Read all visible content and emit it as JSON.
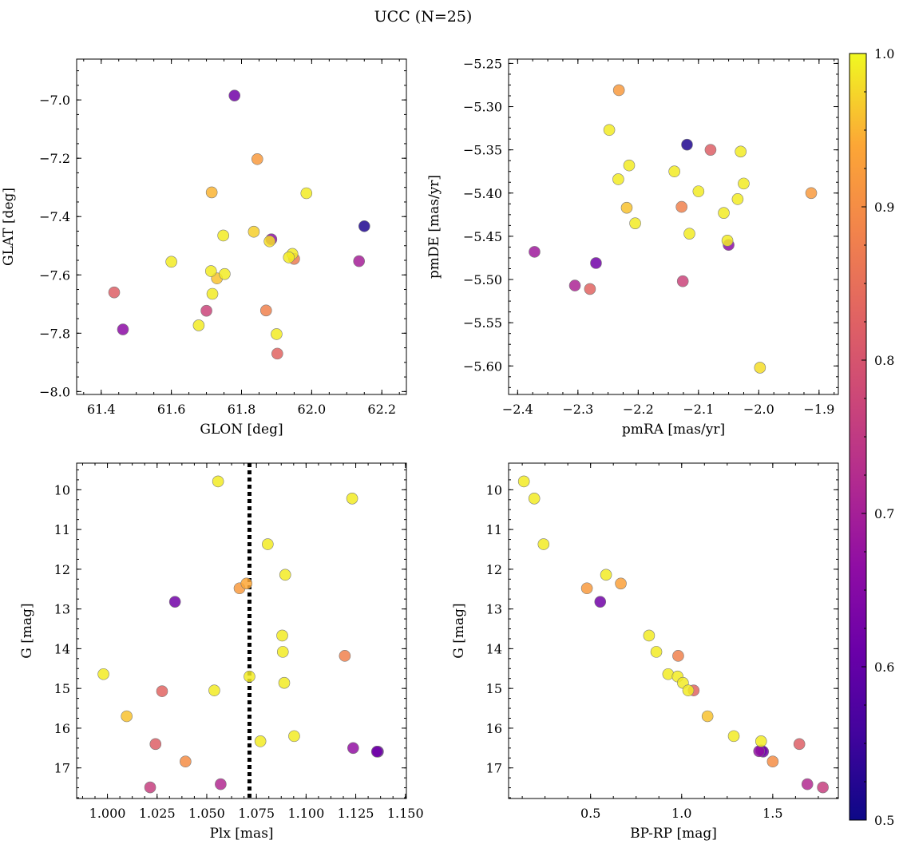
{
  "figure": {
    "title": "UCC (N=25)",
    "colormap": "plasma",
    "colorbar": {
      "min": 0.5,
      "max": 1.0,
      "ticks": [
        0.5,
        0.6,
        0.7,
        0.8,
        0.9,
        1.0
      ],
      "tick_labels": [
        "0.5",
        "0.6",
        "0.7",
        "0.8",
        "0.9",
        "1.0"
      ]
    }
  },
  "chart_data": [
    {
      "type": "scatter",
      "panel": "top-left",
      "xlabel": "GLON [deg]",
      "ylabel": "GLAT [deg]",
      "xlim": [
        61.33,
        62.27
      ],
      "ylim": [
        -8.01,
        -6.86
      ],
      "xticks": [
        61.4,
        61.6,
        61.8,
        62.0,
        62.2
      ],
      "xtick_labels": [
        "61.4",
        "61.6",
        "61.8",
        "62.0",
        "62.2"
      ],
      "yticks": [
        -8.0,
        -7.8,
        -7.6,
        -7.4,
        -7.2,
        -7.0
      ],
      "ytick_labels": [
        "−8.0",
        "−7.8",
        "−7.6",
        "−7.4",
        "−7.2",
        "−7.0"
      ],
      "grid": false,
      "points": [
        {
          "x": 61.78,
          "y": -6.985,
          "c": 0.62
        },
        {
          "x": 61.845,
          "y": -7.203,
          "c": 0.92
        },
        {
          "x": 61.715,
          "y": -7.317,
          "c": 0.95
        },
        {
          "x": 61.985,
          "y": -7.32,
          "c": 0.99
        },
        {
          "x": 62.15,
          "y": -7.433,
          "c": 0.52
        },
        {
          "x": 61.835,
          "y": -7.452,
          "c": 0.97
        },
        {
          "x": 61.748,
          "y": -7.465,
          "c": 0.99
        },
        {
          "x": 61.885,
          "y": -7.478,
          "c": 0.66
        },
        {
          "x": 61.88,
          "y": -7.485,
          "c": 0.98
        },
        {
          "x": 61.95,
          "y": -7.545,
          "c": 0.87
        },
        {
          "x": 61.945,
          "y": -7.528,
          "c": 0.99
        },
        {
          "x": 61.935,
          "y": -7.54,
          "c": 0.99
        },
        {
          "x": 62.135,
          "y": -7.553,
          "c": 0.7
        },
        {
          "x": 61.6,
          "y": -7.555,
          "c": 0.99
        },
        {
          "x": 61.713,
          "y": -7.587,
          "c": 0.99
        },
        {
          "x": 61.752,
          "y": -7.597,
          "c": 0.99
        },
        {
          "x": 61.73,
          "y": -7.612,
          "c": 0.96
        },
        {
          "x": 61.437,
          "y": -7.66,
          "c": 0.82
        },
        {
          "x": 61.717,
          "y": -7.665,
          "c": 0.99
        },
        {
          "x": 61.7,
          "y": -7.723,
          "c": 0.77
        },
        {
          "x": 61.87,
          "y": -7.722,
          "c": 0.88
        },
        {
          "x": 61.678,
          "y": -7.773,
          "c": 0.99
        },
        {
          "x": 61.462,
          "y": -7.787,
          "c": 0.66
        },
        {
          "x": 61.9,
          "y": -7.803,
          "c": 0.99
        },
        {
          "x": 61.902,
          "y": -7.87,
          "c": 0.83
        }
      ]
    },
    {
      "type": "scatter",
      "panel": "top-right",
      "xlabel": "pmRA [mas/yr]",
      "ylabel": "pmDE [mas/yr]",
      "xlim": [
        -2.415,
        -1.868
      ],
      "ylim": [
        -5.633,
        -5.245
      ],
      "xticks": [
        -2.4,
        -2.3,
        -2.2,
        -2.1,
        -2.0,
        -1.9
      ],
      "xtick_labels": [
        "−2.4",
        "−2.3",
        "−2.2",
        "−2.1",
        "−2.0",
        "−1.9"
      ],
      "yticks": [
        -5.6,
        -5.55,
        -5.5,
        -5.45,
        -5.4,
        -5.35,
        -5.3,
        -5.25
      ],
      "ytick_labels": [
        "−5.60",
        "−5.55",
        "−5.50",
        "−5.45",
        "−5.40",
        "−5.35",
        "−5.30",
        "−5.25"
      ],
      "grid": false,
      "points": [
        {
          "x": -2.232,
          "y": -5.281,
          "c": 0.92
        },
        {
          "x": -2.248,
          "y": -5.327,
          "c": 0.99
        },
        {
          "x": -2.119,
          "y": -5.344,
          "c": 0.52
        },
        {
          "x": -2.08,
          "y": -5.35,
          "c": 0.82
        },
        {
          "x": -2.03,
          "y": -5.352,
          "c": 0.99
        },
        {
          "x": -2.215,
          "y": -5.368,
          "c": 0.99
        },
        {
          "x": -2.14,
          "y": -5.375,
          "c": 0.99
        },
        {
          "x": -2.233,
          "y": -5.384,
          "c": 0.99
        },
        {
          "x": -2.025,
          "y": -5.389,
          "c": 0.99
        },
        {
          "x": -2.1,
          "y": -5.398,
          "c": 0.99
        },
        {
          "x": -1.913,
          "y": -5.4,
          "c": 0.92
        },
        {
          "x": -2.035,
          "y": -5.407,
          "c": 0.99
        },
        {
          "x": -2.128,
          "y": -5.416,
          "c": 0.88
        },
        {
          "x": -2.219,
          "y": -5.417,
          "c": 0.96
        },
        {
          "x": -2.058,
          "y": -5.423,
          "c": 0.99
        },
        {
          "x": -2.205,
          "y": -5.435,
          "c": 0.99
        },
        {
          "x": -2.115,
          "y": -5.447,
          "c": 0.99
        },
        {
          "x": -2.05,
          "y": -5.46,
          "c": 0.66
        },
        {
          "x": -2.052,
          "y": -5.455,
          "c": 0.99
        },
        {
          "x": -2.372,
          "y": -5.468,
          "c": 0.69
        },
        {
          "x": -2.27,
          "y": -5.481,
          "c": 0.62
        },
        {
          "x": -2.126,
          "y": -5.502,
          "c": 0.77
        },
        {
          "x": -2.305,
          "y": -5.507,
          "c": 0.71
        },
        {
          "x": -2.28,
          "y": -5.511,
          "c": 0.83
        },
        {
          "x": -1.998,
          "y": -5.602,
          "c": 0.98
        }
      ]
    },
    {
      "type": "scatter",
      "panel": "bottom-left",
      "xlabel": "Plx [mas]",
      "ylabel": "G [mag]",
      "xlim": [
        0.9845,
        1.1505
      ],
      "ylim": [
        17.77,
        9.33
      ],
      "y_inverted": true,
      "xticks": [
        1.0,
        1.025,
        1.05,
        1.075,
        1.1,
        1.125,
        1.15
      ],
      "xtick_labels": [
        "1.000",
        "1.025",
        "1.050",
        "1.075",
        "1.100",
        "1.125",
        "1.150"
      ],
      "yticks": [
        10,
        11,
        12,
        13,
        14,
        15,
        16,
        17
      ],
      "ytick_labels": [
        "10",
        "11",
        "12",
        "13",
        "14",
        "15",
        "16",
        "17"
      ],
      "grid": false,
      "vline": {
        "x": 1.0715,
        "style": "dotted",
        "color": "#000000"
      },
      "points": [
        {
          "x": 1.0557,
          "y": 9.79,
          "c": 0.99
        },
        {
          "x": 1.1232,
          "y": 10.22,
          "c": 0.99
        },
        {
          "x": 1.0807,
          "y": 11.37,
          "c": 0.99
        },
        {
          "x": 1.0895,
          "y": 12.14,
          "c": 0.99
        },
        {
          "x": 1.07,
          "y": 12.36,
          "c": 0.94
        },
        {
          "x": 1.0665,
          "y": 12.48,
          "c": 0.92
        },
        {
          "x": 1.034,
          "y": 12.82,
          "c": 0.62
        },
        {
          "x": 1.088,
          "y": 13.67,
          "c": 0.99
        },
        {
          "x": 1.0883,
          "y": 14.08,
          "c": 0.99
        },
        {
          "x": 1.1195,
          "y": 14.18,
          "c": 0.88
        },
        {
          "x": 0.998,
          "y": 14.64,
          "c": 0.99
        },
        {
          "x": 1.0715,
          "y": 14.7,
          "c": 0.99
        },
        {
          "x": 1.089,
          "y": 14.86,
          "c": 0.99
        },
        {
          "x": 1.0538,
          "y": 15.05,
          "c": 0.99
        },
        {
          "x": 1.0275,
          "y": 15.07,
          "c": 0.83
        },
        {
          "x": 1.0097,
          "y": 15.7,
          "c": 0.96
        },
        {
          "x": 1.094,
          "y": 16.2,
          "c": 0.99
        },
        {
          "x": 1.077,
          "y": 16.33,
          "c": 0.99
        },
        {
          "x": 1.0242,
          "y": 16.4,
          "c": 0.82
        },
        {
          "x": 1.1237,
          "y": 16.5,
          "c": 0.67
        },
        {
          "x": 1.1357,
          "y": 16.59,
          "c": 0.62
        },
        {
          "x": 1.1362,
          "y": 16.59,
          "c": 0.6
        },
        {
          "x": 1.0393,
          "y": 16.84,
          "c": 0.9
        },
        {
          "x": 1.057,
          "y": 17.41,
          "c": 0.72
        },
        {
          "x": 1.0215,
          "y": 17.49,
          "c": 0.76
        }
      ]
    },
    {
      "type": "scatter",
      "panel": "bottom-right",
      "xlabel": "BP-RP [mag]",
      "ylabel": "G [mag]",
      "xlim": [
        0.05,
        1.86
      ],
      "ylim": [
        17.77,
        9.33
      ],
      "y_inverted": true,
      "xticks": [
        0.5,
        1.0,
        1.5
      ],
      "xtick_labels": [
        "0.5",
        "1.0",
        "1.5"
      ],
      "yticks": [
        10,
        11,
        12,
        13,
        14,
        15,
        16,
        17
      ],
      "ytick_labels": [
        "10",
        "11",
        "12",
        "13",
        "14",
        "15",
        "16",
        "17"
      ],
      "grid": false,
      "points": [
        {
          "x": 0.134,
          "y": 9.79,
          "c": 0.99
        },
        {
          "x": 0.191,
          "y": 10.22,
          "c": 0.99
        },
        {
          "x": 0.242,
          "y": 11.37,
          "c": 0.99
        },
        {
          "x": 0.585,
          "y": 12.14,
          "c": 0.99
        },
        {
          "x": 0.666,
          "y": 12.36,
          "c": 0.93
        },
        {
          "x": 0.48,
          "y": 12.48,
          "c": 0.92
        },
        {
          "x": 0.553,
          "y": 12.82,
          "c": 0.62
        },
        {
          "x": 0.821,
          "y": 13.67,
          "c": 0.99
        },
        {
          "x": 0.861,
          "y": 14.08,
          "c": 0.99
        },
        {
          "x": 0.981,
          "y": 14.18,
          "c": 0.88
        },
        {
          "x": 0.926,
          "y": 14.64,
          "c": 0.99
        },
        {
          "x": 0.978,
          "y": 14.7,
          "c": 0.99
        },
        {
          "x": 1.007,
          "y": 14.86,
          "c": 0.99
        },
        {
          "x": 1.066,
          "y": 15.05,
          "c": 0.83
        },
        {
          "x": 1.036,
          "y": 15.05,
          "c": 0.99
        },
        {
          "x": 1.142,
          "y": 15.7,
          "c": 0.96
        },
        {
          "x": 1.286,
          "y": 16.2,
          "c": 0.99
        },
        {
          "x": 1.436,
          "y": 16.33,
          "c": 0.99
        },
        {
          "x": 1.646,
          "y": 16.4,
          "c": 0.82
        },
        {
          "x": 1.425,
          "y": 16.58,
          "c": 0.67
        },
        {
          "x": 1.447,
          "y": 16.59,
          "c": 0.62
        },
        {
          "x": 1.437,
          "y": 16.56,
          "c": 0.6
        },
        {
          "x": 1.5,
          "y": 16.84,
          "c": 0.9
        },
        {
          "x": 1.69,
          "y": 17.41,
          "c": 0.72
        },
        {
          "x": 1.775,
          "y": 17.49,
          "c": 0.76
        }
      ]
    }
  ]
}
